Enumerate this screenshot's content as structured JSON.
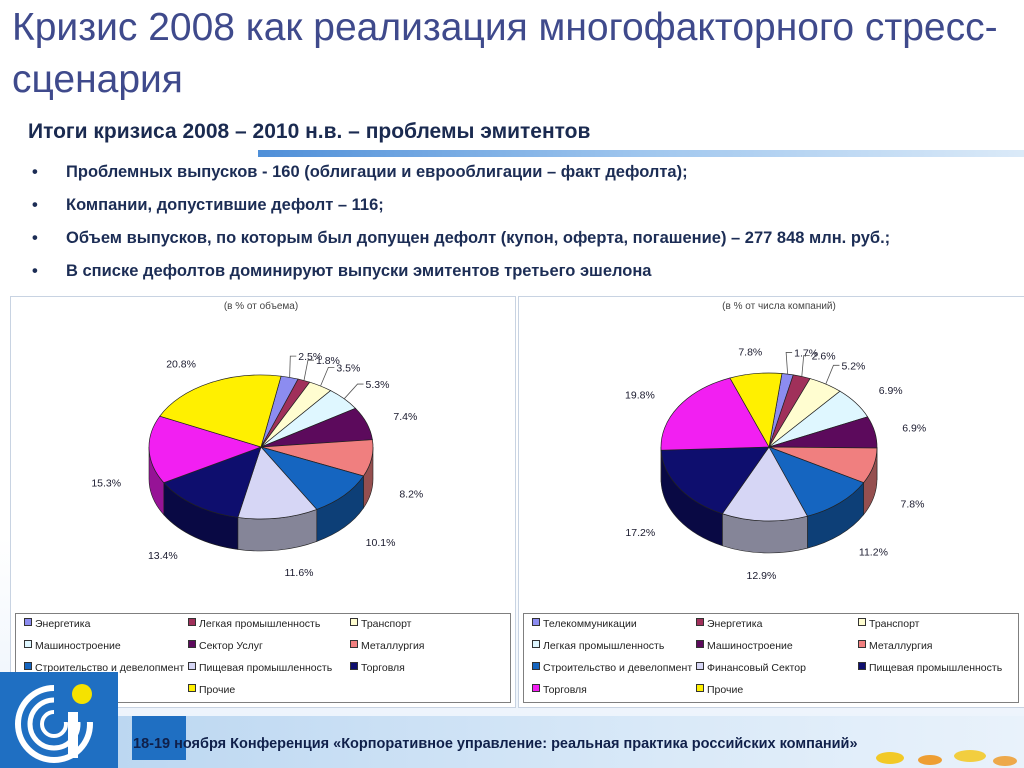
{
  "slide": {
    "title": "Кризис 2008 как реализация многофакторного стресс-сценария",
    "subtitle": "Итоги кризиса 2008 – 2010 н.в. – проблемы эмитентов",
    "bullets": [
      "Проблемных выпусков - 160 (облигации и еврооблигации – факт дефолта);",
      "Компании, допустившие дефолт – 116;",
      "Объем выпусков, по которым был допущен дефолт (купон, оферта, погашение) – 277 848 млн. руб.;",
      "В списке дефолтов доминируют выпуски эмитентов третьего эшелона"
    ],
    "bullet_symbol": "•",
    "footer": "18-19 ноября Конференция «Корпоративное управление: реальная практика российских компаний»",
    "colors": {
      "title": "#3f4a8c",
      "text": "#1c2d55",
      "accent": "#1f6fc2"
    }
  },
  "chart_data": [
    {
      "type": "pie",
      "title": "(в % от объема)",
      "slices": [
        {
          "name": "Энергетика",
          "value": 2.5,
          "color": "#8c8cf0"
        },
        {
          "name": "Легкая промышленность",
          "value": 1.8,
          "color": "#a0305a"
        },
        {
          "name": "Транспорт",
          "value": 3.5,
          "color": "#fffdd0"
        },
        {
          "name": "Машиностроение",
          "value": 5.3,
          "color": "#dff7ff"
        },
        {
          "name": "Сектор Услуг",
          "value": 7.4,
          "color": "#5c0a5c"
        },
        {
          "name": "Металлургия",
          "value": 8.2,
          "color": "#f07f7f"
        },
        {
          "name": "Строительство и девелопмент",
          "value": 10.1,
          "color": "#1565c0"
        },
        {
          "name": "Пищевая промышленность",
          "value": 11.6,
          "color": "#d6d6f5"
        },
        {
          "name": "Торговля",
          "value": 13.4,
          "color": "#0e0e6e"
        },
        {
          "name": "Финансовый Сектор",
          "value": 15.3,
          "color": "#f21ff2"
        },
        {
          "name": "Прочие",
          "value": 20.8,
          "color": "#fff000"
        }
      ],
      "labels": [
        "2.5%",
        "1.8%",
        "3.5%",
        "5.3%",
        "7.4%",
        "8.2%",
        "10.1%",
        "11.6%",
        "13.4%",
        "15.3%",
        "20.8%"
      ],
      "legend": [
        "Энергетика",
        "Легкая промышленность",
        "Транспорт",
        "Машиностроение",
        "Сектор Услуг",
        "Металлургия",
        "Строительство и девелопмент",
        "Пищевая промышленность",
        "Торговля",
        "Финансовый Сектор",
        "Прочие"
      ],
      "legend_visible": [
        "Энергетика",
        "Легкая промышленность",
        "Транспорт",
        "Машиностроение",
        "Сектор Услуг",
        "Металлургия",
        "Строительство и девелопмент",
        "Пищевая промышленность",
        "Торговля",
        "тор",
        "Прочие"
      ]
    },
    {
      "type": "pie",
      "title": "(в % от числа компаний)",
      "slices": [
        {
          "name": "Телекоммуникации",
          "value": 1.7,
          "color": "#8c8cf0"
        },
        {
          "name": "Энергетика",
          "value": 2.6,
          "color": "#a0305a"
        },
        {
          "name": "Транспорт",
          "value": 5.2,
          "color": "#fffdd0"
        },
        {
          "name": "Легкая промышленность",
          "value": 6.9,
          "color": "#dff7ff"
        },
        {
          "name": "Машиностроение",
          "value": 6.9,
          "color": "#5c0a5c"
        },
        {
          "name": "Металлургия",
          "value": 7.8,
          "color": "#f07f7f"
        },
        {
          "name": "Строительство и девелопмент",
          "value": 11.2,
          "color": "#1565c0"
        },
        {
          "name": "Финансовый Сектор",
          "value": 12.9,
          "color": "#d6d6f5"
        },
        {
          "name": "Пищевая промышленность",
          "value": 17.2,
          "color": "#0e0e6e"
        },
        {
          "name": "Торговля",
          "value": 19.8,
          "color": "#f21ff2"
        },
        {
          "name": "Прочие",
          "value": 7.8,
          "color": "#fff000"
        }
      ],
      "labels": [
        "1.7%",
        "2.6%",
        "5.2%",
        "6.9%",
        "6.9%",
        "7.8%",
        "11.2%",
        "12.9%",
        "17.2%",
        "19.8%",
        "7.8%"
      ],
      "legend": [
        "Телекоммуникации",
        "Энергетика",
        "Транспорт",
        "Легкая промышленность",
        "Машиностроение",
        "Металлургия",
        "Строительство и девелопмент",
        "Финансовый Сектор",
        "Пищевая промышленность",
        "Торговля",
        "Прочие"
      ]
    }
  ]
}
